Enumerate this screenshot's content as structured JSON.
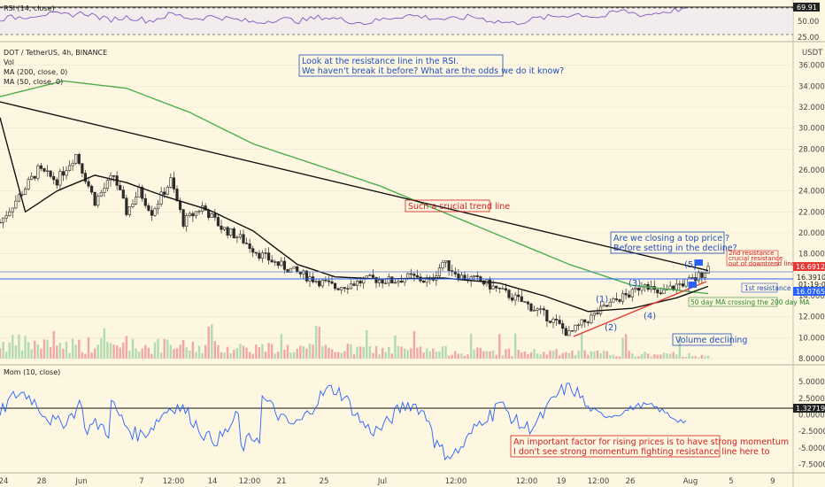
{
  "header": {
    "symbol_line": "DOT / TetherUS, 4h, BINANCE",
    "vol_label": "Vol",
    "ma200_label": "MA (200, close, 0)",
    "ma50_label": "MA (50, close, 0)",
    "currency": "USDT",
    "rsi_label": "RSI (14, close)",
    "mom_label": "Mom (10, close)"
  },
  "price_tags": {
    "current": "16.69122",
    "line_level": "16.39100",
    "countdown": "01:19:07",
    "ma_value": "16.07654"
  },
  "rsi_tags": {
    "current": "69.91",
    "level_50": "50.00",
    "level_25": "25.00"
  },
  "mom_tag": "1.32719",
  "annotations": {
    "rsi_note_1": "Look at the resistance line in the RSI.",
    "rsi_note_2": "We haven't break it before? What are the odds we do it know?",
    "trend": "Such a crucial trend line",
    "top_1": "Are we closing a top price ?",
    "top_2": "Before setting in the decline?",
    "res2_1": "2nd resistance",
    "res2_2": "crucial resistance",
    "res2_3": "out of downtrend line",
    "res1": "1st resistance",
    "ma_cross": "50 day MA crossing the 200 day MA",
    "volume": "Volume declining",
    "mom_1": "An important factor for rising prices is to have strong momentum",
    "mom_2": "I don't see strong momentum fighting resistance line here to"
  },
  "waves": [
    "(1)",
    "(2)",
    "(3)",
    "(4)",
    "(5)"
  ],
  "colors": {
    "background": "#fdf6e0",
    "candle_up": "#2b2b2b",
    "candle_down": "#2b2b2b",
    "ma200": "#4caf50",
    "ma50": "#111111",
    "trendline": "#111111",
    "resistance": "#2962ff",
    "support": "#e53935",
    "rsi": "#7e57c2",
    "momentum": "#2962ff",
    "annotation_blue": "#1f4fbf",
    "annotation_red": "#d02020"
  },
  "chart_data": {
    "type": "line",
    "price_axis": {
      "ticks": [
        "36.00000",
        "34.00000",
        "32.00000",
        "30.00000",
        "28.00000",
        "26.00000",
        "24.00000",
        "22.00000",
        "20.00000",
        "18.00000",
        "14.00000",
        "12.00000",
        "10.00000",
        "8.00000"
      ],
      "ylim": [
        8,
        38
      ]
    },
    "x_axis_labels": [
      "24",
      "28",
      "Jun",
      "7",
      "12:00",
      "14",
      "12:00",
      "21",
      "25",
      "Jul",
      "12:00",
      "12:00",
      "19",
      "12:00",
      "26",
      "Aug",
      "5",
      "9"
    ],
    "rsi_axis": {
      "ticks": [
        "50.00",
        "25.00"
      ],
      "ylim": [
        0,
        100
      ]
    },
    "mom_axis": {
      "ticks": [
        "5.00000",
        "2.50000",
        "0.00000",
        "-2.50000",
        "-5.00000",
        "-7.50000"
      ],
      "ylim": [
        -8.5,
        6.5
      ]
    },
    "price_series_approx": [
      [
        0,
        21
      ],
      [
        6,
        23.5
      ],
      [
        12,
        26
      ],
      [
        18,
        25
      ],
      [
        24,
        27.5
      ],
      [
        30,
        23
      ],
      [
        36,
        25.5
      ],
      [
        40,
        22
      ],
      [
        44,
        24
      ],
      [
        48,
        22
      ],
      [
        54,
        25
      ],
      [
        58,
        21
      ],
      [
        64,
        22.5
      ],
      [
        70,
        20.5
      ],
      [
        76,
        19.5
      ],
      [
        82,
        18
      ],
      [
        88,
        17
      ],
      [
        94,
        16.2
      ],
      [
        100,
        15.5
      ],
      [
        106,
        14.8
      ],
      [
        112,
        15.2
      ],
      [
        118,
        15.6
      ],
      [
        124,
        15.4
      ],
      [
        130,
        15.8
      ],
      [
        136,
        15.3
      ],
      [
        140,
        17.2
      ],
      [
        146,
        15.8
      ],
      [
        152,
        15.4
      ],
      [
        158,
        14.5
      ],
      [
        164,
        13.6
      ],
      [
        170,
        12.6
      ],
      [
        176,
        11.4
      ],
      [
        180,
        10.3
      ],
      [
        184,
        11.3
      ],
      [
        190,
        12.6
      ],
      [
        196,
        13.8
      ],
      [
        200,
        14.2
      ],
      [
        204,
        15.4
      ],
      [
        208,
        14.0
      ],
      [
        214,
        15.0
      ],
      [
        220,
        15.6
      ],
      [
        224,
        16.7
      ]
    ],
    "series": [
      {
        "name": "MA (200, close, 0)",
        "values_approx": [
          [
            0,
            33
          ],
          [
            20,
            34.5
          ],
          [
            40,
            33.8
          ],
          [
            60,
            31.5
          ],
          [
            80,
            28.5
          ],
          [
            100,
            26.5
          ],
          [
            120,
            24.5
          ],
          [
            140,
            22
          ],
          [
            160,
            19.5
          ],
          [
            180,
            17
          ],
          [
            200,
            15
          ],
          [
            224,
            14.2
          ]
        ]
      },
      {
        "name": "MA (50, close, 0)",
        "values_approx": [
          [
            0,
            31
          ],
          [
            8,
            22
          ],
          [
            18,
            24
          ],
          [
            30,
            25.5
          ],
          [
            40,
            24.8
          ],
          [
            52,
            23.5
          ],
          [
            66,
            22.2
          ],
          [
            80,
            20.2
          ],
          [
            94,
            17
          ],
          [
            106,
            15.8
          ],
          [
            120,
            15.6
          ],
          [
            140,
            15.7
          ],
          [
            158,
            15.2
          ],
          [
            172,
            14
          ],
          [
            186,
            12.5
          ],
          [
            200,
            12.8
          ],
          [
            214,
            13.8
          ],
          [
            224,
            14.9
          ]
        ]
      }
    ],
    "trendline": [
      [
        0,
        32.5
      ],
      [
        224,
        16.4
      ]
    ],
    "resistance_level": 16.391,
    "rsi_values_approx": [
      52,
      55,
      60,
      58,
      62,
      50,
      55,
      48,
      60,
      52,
      56,
      50,
      45,
      52,
      48,
      55,
      50,
      44,
      52,
      58,
      54,
      50,
      56,
      48,
      44,
      52,
      56,
      60,
      54,
      66,
      58,
      64,
      70
    ]
  }
}
